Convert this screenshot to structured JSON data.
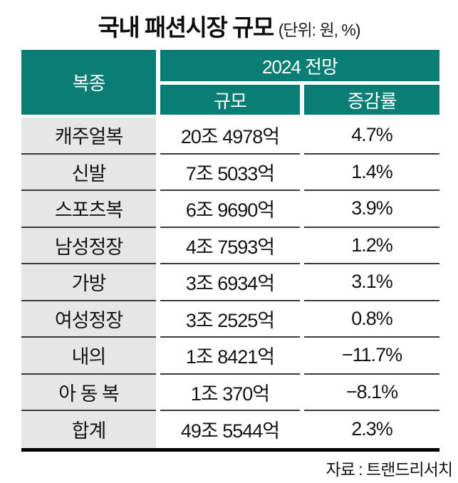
{
  "chart_data": {
    "type": "table",
    "title": "국내 패션시장 규모",
    "unit_note": "(단위: 원, %)",
    "header": {
      "category": "복종",
      "group": "2024 전망",
      "size": "규모",
      "rate": "증감률"
    },
    "rows": [
      {
        "category": "캐주얼복",
        "size": "20조 4978억",
        "rate": "4.7%"
      },
      {
        "category": "신발",
        "size": "7조 5033억",
        "rate": "1.4%"
      },
      {
        "category": "스포츠복",
        "size": "6조 9690억",
        "rate": "3.9%"
      },
      {
        "category": "남성정장",
        "size": "4조 7593억",
        "rate": "1.2%"
      },
      {
        "category": "가방",
        "size": "3조 6934억",
        "rate": "3.1%"
      },
      {
        "category": "여성정장",
        "size": "3조 2525억",
        "rate": "0.8%"
      },
      {
        "category": "내의",
        "size": "1조 8421억",
        "rate": "−11.7%"
      },
      {
        "category": "아 동 복",
        "size": "1조 370억",
        "rate": "−8.1%"
      },
      {
        "category": "합계",
        "size": "49조 5544억",
        "rate": "2.3%"
      }
    ],
    "source": "자료 : 트랜드리서치"
  },
  "colors": {
    "header_teal": "#0a7d75",
    "category_gray": "#e6e6e6",
    "row_line": "#3a3a3a",
    "bottom_rule": "#000000",
    "text": "#141414"
  }
}
